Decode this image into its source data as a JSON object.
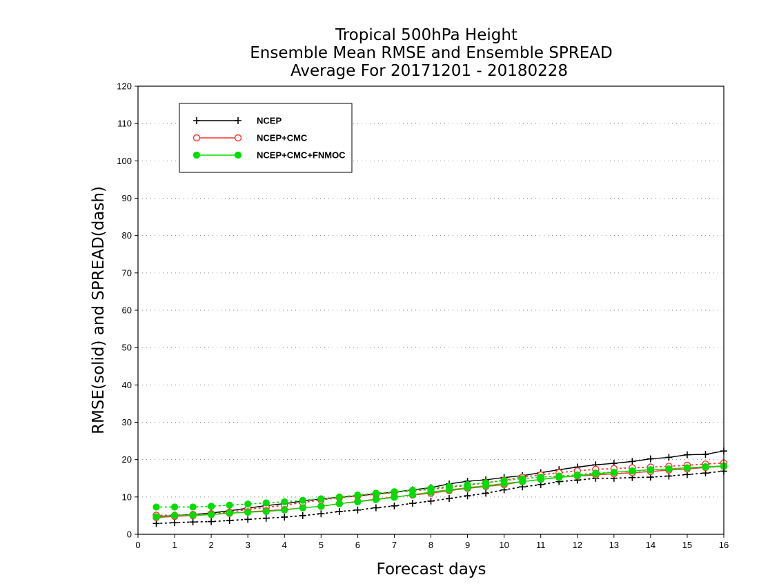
{
  "chart_data": {
    "type": "line",
    "title": [
      "Tropical 500hPa Height",
      "Ensemble Mean RMSE and Ensemble SPREAD",
      "Average For 20171201 - 20180228"
    ],
    "xlabel": "Forecast days",
    "ylabel": "RMSE(solid) and SPREAD(dash)",
    "xlim": [
      0,
      16
    ],
    "ylim": [
      0,
      120
    ],
    "xticks": [
      0,
      1,
      2,
      3,
      4,
      5,
      6,
      7,
      8,
      9,
      10,
      11,
      12,
      13,
      14,
      15,
      16
    ],
    "yticks": [
      0,
      10,
      20,
      30,
      40,
      50,
      60,
      70,
      80,
      90,
      100,
      110,
      120
    ],
    "grid": "horizontal dotted",
    "legend_position": "top-left",
    "x": [
      0.5,
      1,
      1.5,
      2,
      2.5,
      3,
      3.5,
      4,
      4.5,
      5,
      5.5,
      6,
      6.5,
      7,
      7.5,
      8,
      8.5,
      9,
      9.5,
      10,
      10.5,
      11,
      11.5,
      12,
      12.5,
      13,
      13.5,
      14,
      14.5,
      15,
      15.5,
      16
    ],
    "series": [
      {
        "name": "NCEP",
        "color": "#000000",
        "marker": "plus",
        "rmse": [
          4.8,
          5.0,
          5.3,
          5.7,
          6.3,
          7.0,
          7.7,
          8.2,
          8.9,
          9.5,
          9.9,
          10.3,
          10.8,
          11.3,
          11.9,
          12.5,
          13.5,
          14.2,
          14.6,
          15.2,
          15.7,
          16.5,
          17.3,
          18.0,
          18.6,
          19.0,
          19.5,
          20.2,
          20.6,
          21.3,
          21.4,
          22.3
        ],
        "spread": [
          2.9,
          3.1,
          3.3,
          3.4,
          3.7,
          4.0,
          4.3,
          4.6,
          5.0,
          5.5,
          6.1,
          6.5,
          7.1,
          7.6,
          8.3,
          8.9,
          9.6,
          10.3,
          11.0,
          11.9,
          12.7,
          13.3,
          14.1,
          14.5,
          15.0,
          15.0,
          15.2,
          15.3,
          15.6,
          16.0,
          16.4,
          16.9
        ]
      },
      {
        "name": "NCEP+CMC",
        "color": "#ff3030",
        "marker": "open-circle",
        "rmse": [
          4.5,
          4.8,
          5.0,
          5.3,
          5.6,
          6.0,
          6.3,
          6.6,
          7.1,
          7.5,
          8.2,
          8.8,
          9.4,
          10.0,
          10.5,
          11.0,
          11.7,
          12.3,
          12.8,
          13.3,
          14.1,
          14.7,
          15.3,
          15.6,
          15.9,
          16.2,
          16.5,
          16.8,
          17.2,
          17.5,
          17.9,
          18.2
        ],
        "spread": [
          5.1,
          5.1,
          5.3,
          5.5,
          5.9,
          6.7,
          7.2,
          7.8,
          8.5,
          9.2,
          9.8,
          10.3,
          10.7,
          11.2,
          11.7,
          12.0,
          12.6,
          13.1,
          13.8,
          14.5,
          15.3,
          15.9,
          16.5,
          17.0,
          17.4,
          17.6,
          17.8,
          18.0,
          18.2,
          18.5,
          18.8,
          19.1
        ]
      },
      {
        "name": "NCEP+CMC+FNMOC",
        "color": "#00dd00",
        "marker": "filled-circle",
        "rmse": [
          4.7,
          5.0,
          5.1,
          5.3,
          5.7,
          5.9,
          6.1,
          6.5,
          7.1,
          7.5,
          8.2,
          8.7,
          9.3,
          9.9,
          10.6,
          11.3,
          11.9,
          12.5,
          13.0,
          13.6,
          14.1,
          14.7,
          15.2,
          15.7,
          16.2,
          16.6,
          17.0,
          17.3,
          17.5,
          17.8,
          18.1,
          18.3
        ],
        "spread": [
          7.3,
          7.3,
          7.3,
          7.5,
          7.8,
          8.1,
          8.4,
          8.7,
          9.1,
          9.5,
          10.0,
          10.5,
          11.0,
          11.4,
          11.8,
          12.3,
          12.8,
          13.3,
          13.8,
          14.4,
          14.9,
          15.3,
          15.6,
          15.9,
          16.4,
          16.6,
          16.9,
          17.2,
          17.5,
          17.8,
          18.0,
          18.2
        ]
      }
    ]
  }
}
